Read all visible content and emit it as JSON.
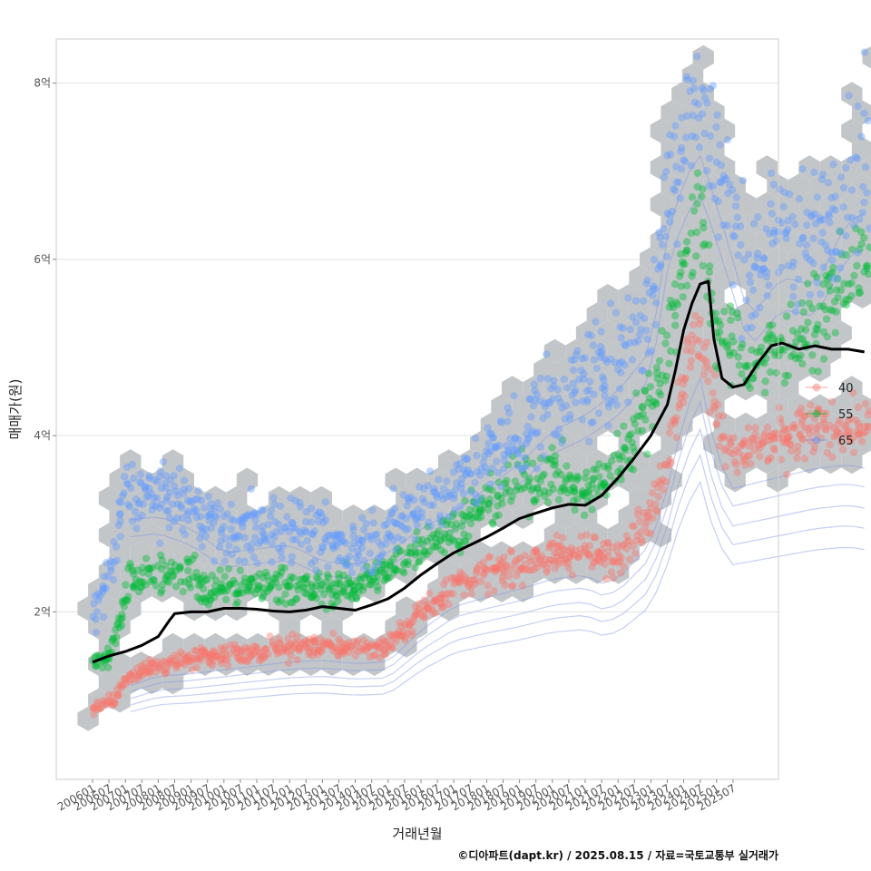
{
  "chart_data": {
    "type": "scatter",
    "xlabel": "거래년월",
    "ylabel": "매매가(원)",
    "caption": "©디아파트(dapt.kr) / 2025.08.15 / 자료=국토교통부 실거래가",
    "ylim": [
      0.1,
      8.5
    ],
    "yticks": [
      {
        "value": 2,
        "label": "2억"
      },
      {
        "value": 4,
        "label": "4억"
      },
      {
        "value": 6,
        "label": "6억"
      },
      {
        "value": 8,
        "label": "8억"
      }
    ],
    "x_start": "200601",
    "x_end": "202507",
    "x_tick_labels": [
      "200601",
      "200607",
      "200701",
      "200707",
      "200801",
      "200807",
      "200901",
      "200907",
      "201001",
      "201007",
      "201101",
      "201107",
      "201201",
      "201207",
      "201301",
      "201307",
      "201401",
      "201407",
      "201501",
      "201507",
      "201601",
      "201607",
      "201701",
      "201707",
      "201801",
      "201807",
      "201901",
      "201907",
      "202001",
      "202007",
      "202101",
      "202107",
      "202201",
      "202207",
      "202301",
      "202307",
      "202401",
      "202407",
      "202501",
      "202507"
    ],
    "legend": [
      {
        "name": "40",
        "color": "#F8766D"
      },
      {
        "name": "55",
        "color": "#00BA38"
      },
      {
        "name": "65",
        "color": "#619CFF"
      }
    ],
    "series": [
      {
        "name": "40",
        "color": "#F8766D",
        "trend": [
          [
            0,
            0.9
          ],
          [
            8,
            1.0
          ],
          [
            14,
            1.3
          ],
          [
            24,
            1.42
          ],
          [
            36,
            1.45
          ],
          [
            48,
            1.5
          ],
          [
            60,
            1.55
          ],
          [
            72,
            1.6
          ],
          [
            84,
            1.62
          ],
          [
            96,
            1.58
          ],
          [
            108,
            1.6
          ],
          [
            120,
            2.0
          ],
          [
            132,
            2.3
          ],
          [
            144,
            2.42
          ],
          [
            156,
            2.52
          ],
          [
            168,
            2.65
          ],
          [
            180,
            2.7
          ],
          [
            186,
            2.6
          ],
          [
            192,
            2.65
          ],
          [
            204,
            3.1
          ],
          [
            210,
            3.8
          ],
          [
            216,
            4.7
          ],
          [
            222,
            5.2
          ],
          [
            228,
            4.2
          ],
          [
            234,
            3.8
          ],
          [
            240,
            3.85
          ],
          [
            252,
            3.95
          ],
          [
            264,
            4.05
          ],
          [
            276,
            4.1
          ],
          [
            283,
            4.05
          ]
        ],
        "spread": 0.14
      },
      {
        "name": "55",
        "color": "#00BA38",
        "trend": [
          [
            0,
            1.4
          ],
          [
            6,
            1.5
          ],
          [
            10,
            1.9
          ],
          [
            14,
            2.4
          ],
          [
            24,
            2.45
          ],
          [
            36,
            2.45
          ],
          [
            42,
            2.2
          ],
          [
            48,
            2.3
          ],
          [
            54,
            2.25
          ],
          [
            60,
            2.3
          ],
          [
            72,
            2.3
          ],
          [
            84,
            2.25
          ],
          [
            96,
            2.3
          ],
          [
            108,
            2.45
          ],
          [
            120,
            2.75
          ],
          [
            132,
            2.95
          ],
          [
            144,
            3.2
          ],
          [
            156,
            3.45
          ],
          [
            168,
            3.6
          ],
          [
            180,
            3.3
          ],
          [
            192,
            3.7
          ],
          [
            204,
            4.4
          ],
          [
            210,
            5.0
          ],
          [
            216,
            6.0
          ],
          [
            222,
            6.5
          ],
          [
            228,
            5.2
          ],
          [
            240,
            4.8
          ],
          [
            252,
            5.0
          ],
          [
            264,
            5.3
          ],
          [
            276,
            5.8
          ],
          [
            283,
            5.9
          ]
        ],
        "spread": 0.16
      },
      {
        "name": "65",
        "color": "#619CFF",
        "trend": [
          [
            0,
            1.9
          ],
          [
            6,
            2.4
          ],
          [
            12,
            3.3
          ],
          [
            24,
            3.35
          ],
          [
            36,
            3.2
          ],
          [
            48,
            2.9
          ],
          [
            60,
            2.95
          ],
          [
            72,
            3.0
          ],
          [
            84,
            2.8
          ],
          [
            96,
            2.75
          ],
          [
            108,
            2.9
          ],
          [
            120,
            3.2
          ],
          [
            132,
            3.4
          ],
          [
            144,
            3.7
          ],
          [
            156,
            4.0
          ],
          [
            168,
            4.4
          ],
          [
            180,
            4.6
          ],
          [
            192,
            4.9
          ],
          [
            204,
            5.4
          ],
          [
            210,
            6.8
          ],
          [
            216,
            7.5
          ],
          [
            222,
            7.8
          ],
          [
            228,
            7.2
          ],
          [
            240,
            5.8
          ],
          [
            252,
            6.3
          ],
          [
            264,
            6.2
          ],
          [
            276,
            7.0
          ],
          [
            283,
            7.1
          ]
        ],
        "spread": 0.22
      }
    ],
    "mean_line": [
      [
        0,
        1.43
      ],
      [
        6,
        1.5
      ],
      [
        12,
        1.55
      ],
      [
        18,
        1.62
      ],
      [
        24,
        1.72
      ],
      [
        28,
        1.9
      ],
      [
        30,
        1.98
      ],
      [
        36,
        2.0
      ],
      [
        42,
        2.0
      ],
      [
        48,
        2.04
      ],
      [
        54,
        2.04
      ],
      [
        60,
        2.03
      ],
      [
        66,
        2.01
      ],
      [
        72,
        2.0
      ],
      [
        78,
        2.02
      ],
      [
        84,
        2.06
      ],
      [
        90,
        2.04
      ],
      [
        96,
        2.02
      ],
      [
        102,
        2.08
      ],
      [
        108,
        2.15
      ],
      [
        114,
        2.27
      ],
      [
        120,
        2.42
      ],
      [
        126,
        2.55
      ],
      [
        132,
        2.67
      ],
      [
        138,
        2.76
      ],
      [
        144,
        2.85
      ],
      [
        150,
        2.95
      ],
      [
        156,
        3.06
      ],
      [
        162,
        3.12
      ],
      [
        168,
        3.18
      ],
      [
        174,
        3.22
      ],
      [
        180,
        3.21
      ],
      [
        186,
        3.32
      ],
      [
        192,
        3.52
      ],
      [
        198,
        3.75
      ],
      [
        204,
        4.0
      ],
      [
        210,
        4.35
      ],
      [
        213,
        4.75
      ],
      [
        216,
        5.2
      ],
      [
        219,
        5.5
      ],
      [
        222,
        5.72
      ],
      [
        225,
        5.75
      ],
      [
        227,
        5.1
      ],
      [
        230,
        4.65
      ],
      [
        234,
        4.55
      ],
      [
        238,
        4.58
      ],
      [
        243,
        4.82
      ],
      [
        248,
        5.02
      ],
      [
        252,
        5.05
      ],
      [
        258,
        4.98
      ],
      [
        264,
        5.02
      ],
      [
        270,
        4.98
      ],
      [
        276,
        4.98
      ],
      [
        282,
        4.95
      ]
    ]
  }
}
